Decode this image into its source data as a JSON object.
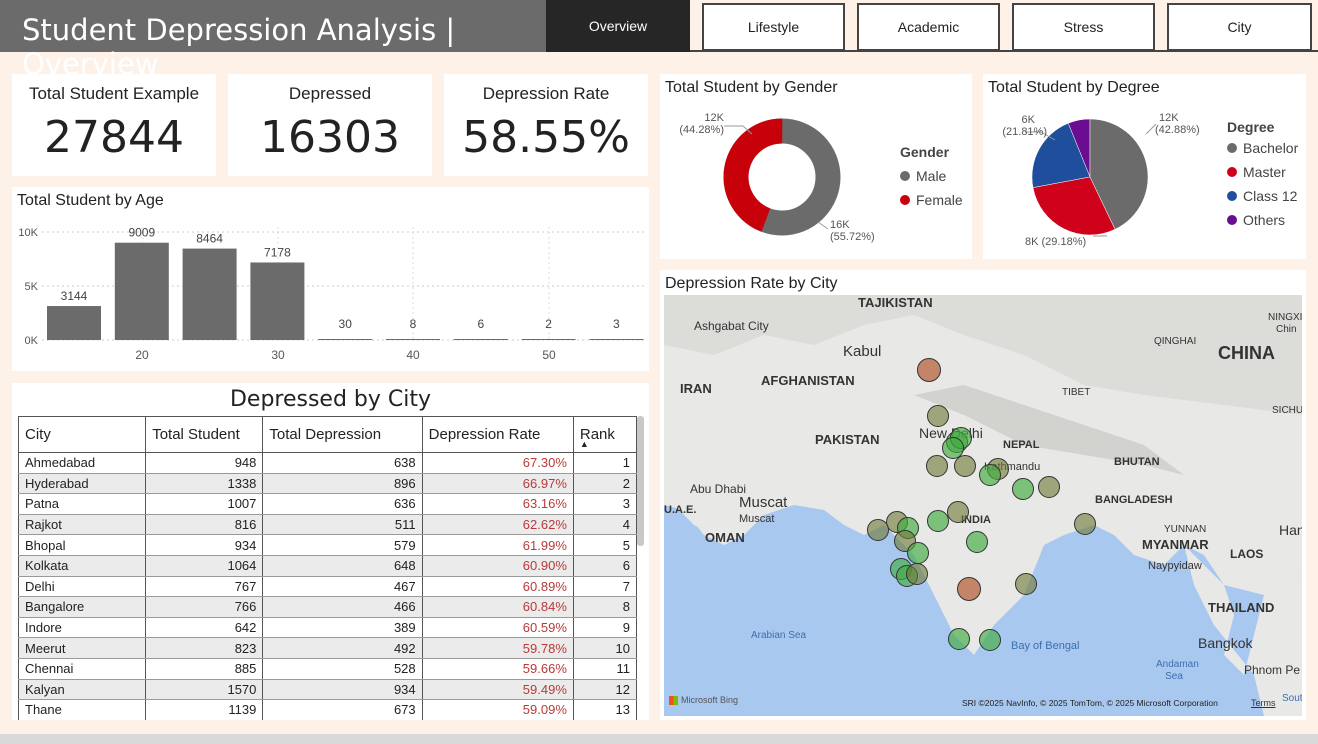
{
  "header": {
    "title": "Student Depression Analysis | Overview",
    "tabs": [
      "Overview",
      "Lifestyle",
      "Academic",
      "Stress",
      "City"
    ],
    "active_tab": "Overview"
  },
  "kpis": [
    {
      "label": "Total Student Example",
      "value": "27844"
    },
    {
      "label": "Depressed",
      "value": "16303"
    },
    {
      "label": "Depression Rate",
      "value": "58.55%"
    }
  ],
  "colors": {
    "male": "#6b6b6b",
    "female": "#c8000a",
    "bachelor": "#6b6b6b",
    "master": "#d0021b",
    "class12": "#1f4e9c",
    "others": "#6a0d91",
    "bar": "#6b6b6b"
  },
  "gender_chart": {
    "title": "Total Student by Gender",
    "legend_title": "Gender",
    "legend": [
      "Male",
      "Female"
    ],
    "label_female": [
      "12K",
      "(44.28%)"
    ],
    "label_male": [
      "16K",
      "(55.72%)"
    ]
  },
  "degree_chart": {
    "title": "Total Student by Degree",
    "legend_title": "Degree",
    "legend": [
      "Bachelor",
      "Master",
      "Class 12",
      "Others"
    ],
    "label_bachelor": [
      "12K",
      "(42.88%)"
    ],
    "label_master": "8K (29.18%)",
    "label_class12": [
      "6K",
      "(21.81%)"
    ]
  },
  "chart_data": [
    {
      "type": "pie",
      "title": "Total Student by Gender",
      "categories": [
        "Male",
        "Female"
      ],
      "values": [
        55.72,
        44.28
      ],
      "labels": [
        "16K (55.72%)",
        "12K (44.28%)"
      ],
      "donut": true
    },
    {
      "type": "pie",
      "title": "Total Student by Degree",
      "categories": [
        "Bachelor",
        "Master",
        "Class 12",
        "Others"
      ],
      "values": [
        42.88,
        29.18,
        21.81,
        6.13
      ],
      "labels": [
        "12K (42.88%)",
        "8K (29.18%)",
        "6K (21.81%)",
        ""
      ]
    },
    {
      "type": "bar",
      "title": "Total Student by Age",
      "x": [
        18,
        22,
        26,
        30,
        34,
        38,
        42,
        46,
        50
      ],
      "values": [
        3144,
        9009,
        8464,
        7178,
        30,
        8,
        6,
        2,
        3
      ],
      "xticks": [
        "20",
        "30",
        "40",
        "50"
      ],
      "yticks": [
        "0K",
        "5K",
        "10K"
      ],
      "ylim": [
        0,
        10000
      ],
      "grid": true
    }
  ],
  "age_chart": {
    "title": "Total Student by Age",
    "yticks": [
      "10K",
      "5K",
      "0K"
    ],
    "xticks": [
      "20",
      "30",
      "40",
      "50"
    ]
  },
  "city_table": {
    "title": "Depressed by City",
    "columns": [
      "City",
      "Total Student",
      "Total Depression",
      "Depression Rate",
      "Rank"
    ],
    "rows": [
      [
        "Ahmedabad",
        "948",
        "638",
        "67.30%",
        "1"
      ],
      [
        "Hyderabad",
        "1338",
        "896",
        "66.97%",
        "2"
      ],
      [
        "Patna",
        "1007",
        "636",
        "63.16%",
        "3"
      ],
      [
        "Rajkot",
        "816",
        "511",
        "62.62%",
        "4"
      ],
      [
        "Bhopal",
        "934",
        "579",
        "61.99%",
        "5"
      ],
      [
        "Kolkata",
        "1064",
        "648",
        "60.90%",
        "6"
      ],
      [
        "Delhi",
        "767",
        "467",
        "60.89%",
        "7"
      ],
      [
        "Bangalore",
        "766",
        "466",
        "60.84%",
        "8"
      ],
      [
        "Indore",
        "642",
        "389",
        "60.59%",
        "9"
      ],
      [
        "Meerut",
        "823",
        "492",
        "59.78%",
        "10"
      ],
      [
        "Chennai",
        "885",
        "528",
        "59.66%",
        "11"
      ],
      [
        "Kalyan",
        "1570",
        "934",
        "59.49%",
        "12"
      ],
      [
        "Thane",
        "1139",
        "673",
        "59.09%",
        "13"
      ]
    ]
  },
  "map": {
    "title": "Depression Rate by City",
    "labels": {
      "tajikistan": "TAJIKISTAN",
      "ashgabat": "Ashgabat City",
      "kabul": "Kabul",
      "iran": "IRAN",
      "afghanistan": "AFGHANISTAN",
      "pakistan": "PAKISTAN",
      "new_delhi": "New Delhi",
      "nepal": "NEPAL",
      "kathmandu": "Kathmandu",
      "bhutan": "BHUTAN",
      "china": "CHINA",
      "qinghai": "QINGHAI",
      "tibet": "TIBET",
      "ningxia": "NINGXIA",
      "sichuan": "SICHUA",
      "bangladesh": "BANGLADESH",
      "yunnan": "YUNNAN",
      "abu_dhabi": "Abu Dhabi",
      "uae": "U.A.E.",
      "muscat": "Muscat",
      "muscat_small": "Muscat",
      "oman": "OMAN",
      "india": "INDIA",
      "myanmar": "MYANMAR",
      "naypyidaw": "Naypyidaw",
      "laos": "LAOS",
      "hanoi": "Hano",
      "thailand": "THAILAND",
      "bangkok": "Bangkok",
      "phnom_penh": "Phnom Pe",
      "arabian_sea": "Arabian Sea",
      "bay_of_bengal": "Bay of Bengal",
      "andaman_sea": "Andaman Sea",
      "south": "Sout",
      "chin": "Chin"
    },
    "bing": "Microsoft Bing",
    "attribution": "SRI ©2025 NavInfo, © 2025 TomTom, © 2025 Microsoft Corporation",
    "terms": "Terms"
  }
}
